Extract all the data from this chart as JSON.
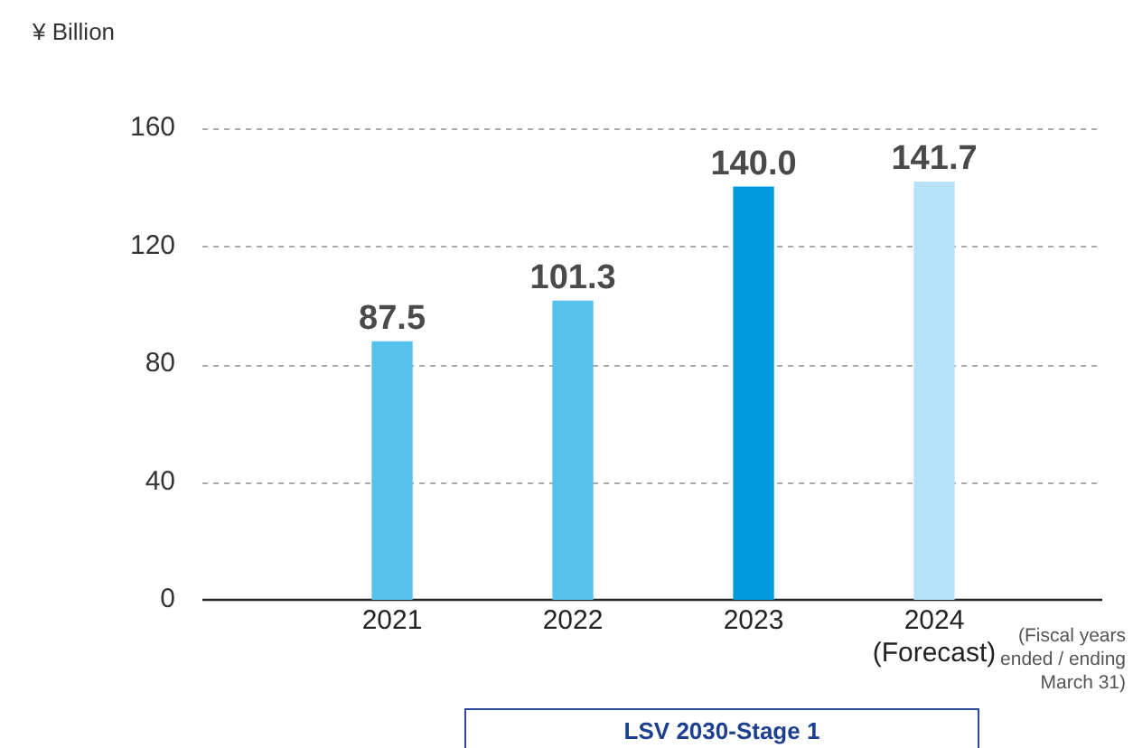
{
  "chart_data": {
    "type": "bar",
    "ylabel": "¥ Billion",
    "categories": [
      "2021",
      "2022",
      "2023",
      "2024\n(Forecast)"
    ],
    "values": [
      87.5,
      101.3,
      140.0,
      141.7
    ],
    "colors": [
      "#55c1ec",
      "#55c1ec",
      "#0099dd",
      "#b5e2f7"
    ],
    "value_labels": [
      "87.5",
      "101.3",
      "140.0",
      "141.7"
    ],
    "ylim": [
      0,
      160
    ],
    "yticks": [
      0,
      40,
      80,
      120,
      160
    ],
    "grid": "y",
    "legend": false,
    "annotations": [
      "(Fiscal years\nended / ending\nMarch 31)",
      "LSV 2030-Stage 1"
    ]
  }
}
